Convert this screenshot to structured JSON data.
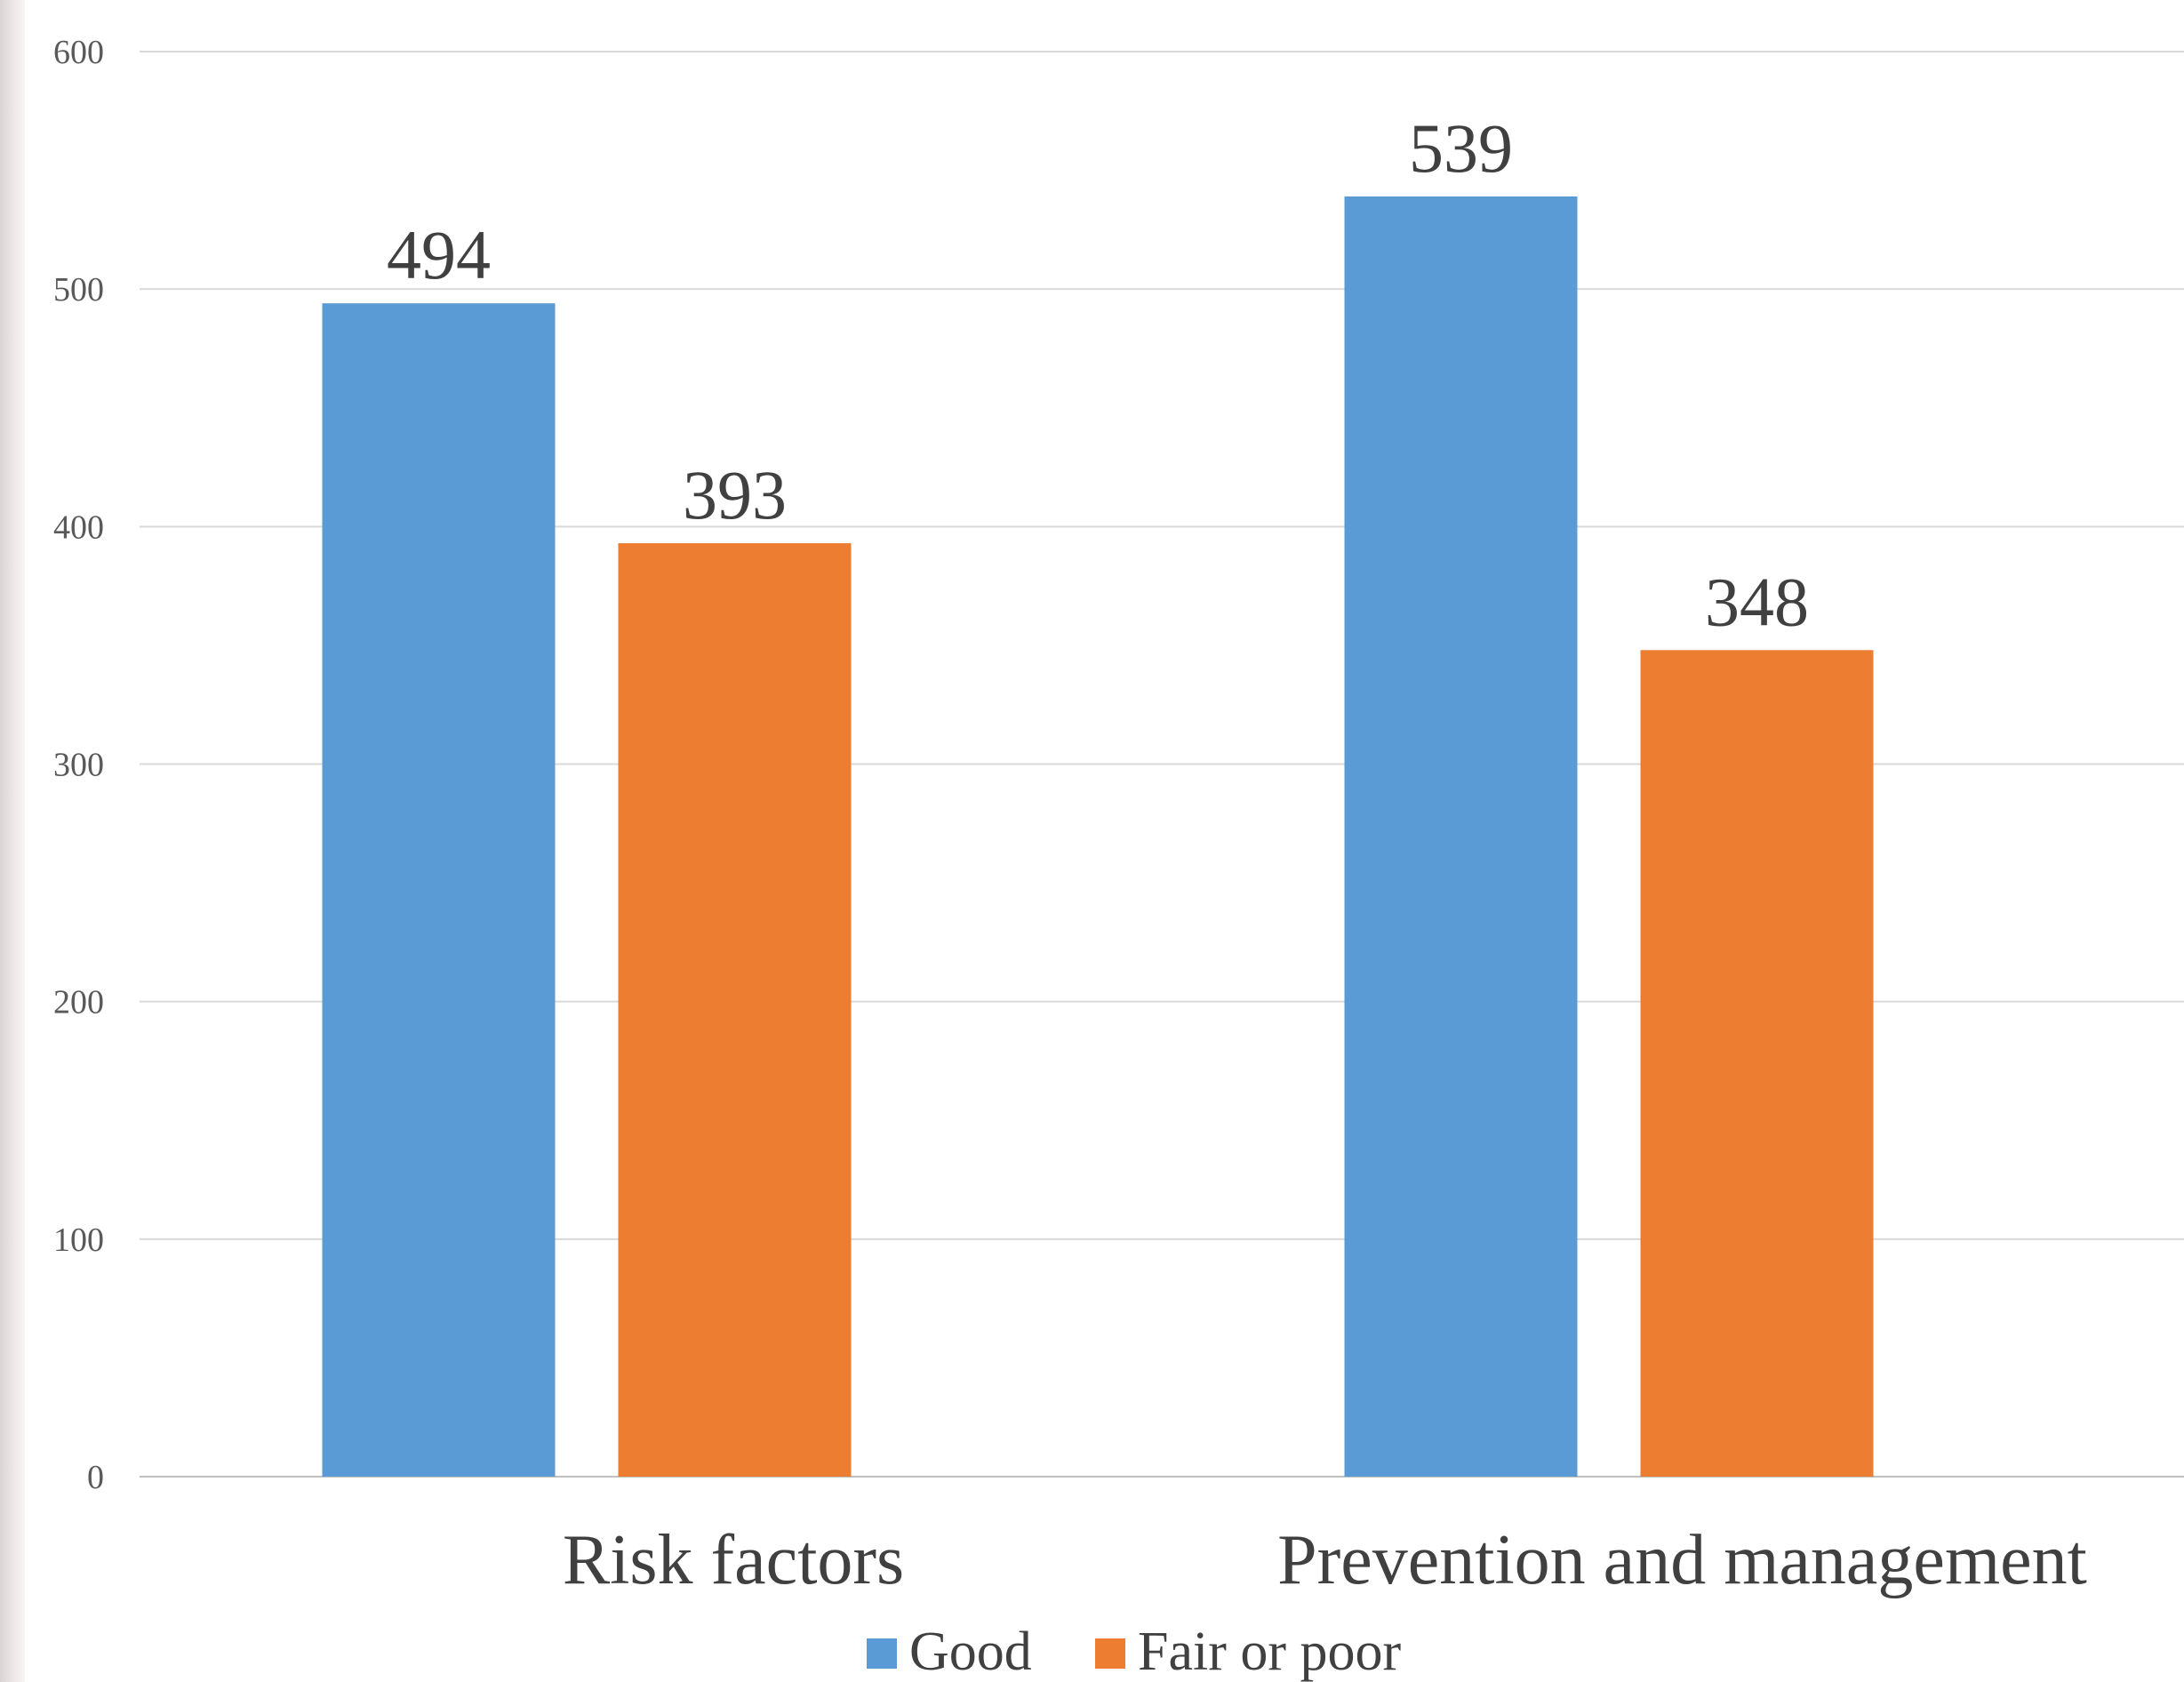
{
  "chart_data": {
    "type": "bar",
    "categories": [
      "Risk factors",
      "Prevention and management"
    ],
    "series": [
      {
        "name": "Good",
        "values": [
          494,
          539
        ],
        "color": "#5b9bd5"
      },
      {
        "name": "Fair or poor",
        "values": [
          393,
          348
        ],
        "color": "#ed7d31"
      }
    ],
    "ylim": [
      0,
      600
    ],
    "yticks": [
      0,
      100,
      200,
      300,
      400,
      500,
      600
    ],
    "grid": true,
    "data_labels": true,
    "legend_position": "bottom"
  }
}
